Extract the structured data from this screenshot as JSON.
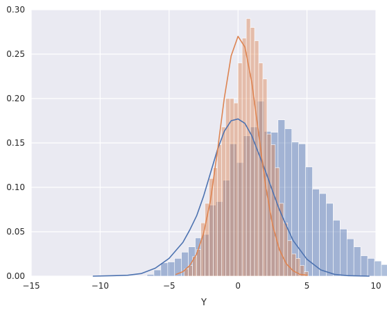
{
  "chart_data": {
    "type": "histogram",
    "title": "",
    "xlabel": "Y",
    "ylabel": "",
    "xlim": [
      -15,
      10
    ],
    "ylim": [
      0,
      0.3
    ],
    "x_ticks": [
      -15,
      -10,
      -5,
      0,
      5,
      10
    ],
    "y_ticks": [
      0.0,
      0.05,
      0.1,
      0.15,
      0.2,
      0.25,
      0.3
    ],
    "x_tick_labels": [
      "−15",
      "−10",
      "−5",
      "0",
      "5",
      "10"
    ],
    "y_tick_labels": [
      "0.00",
      "0.05",
      "0.10",
      "0.15",
      "0.20",
      "0.25",
      "0.30"
    ],
    "grid": true,
    "series": [
      {
        "color": "#4c72b0",
        "bin_start": -6.6,
        "bin_width": 0.5,
        "density": [
          0.002,
          0.007,
          0.015,
          0.016,
          0.02,
          0.027,
          0.033,
          0.043,
          0.047,
          0.08,
          0.084,
          0.108,
          0.149,
          0.128,
          0.158,
          0.168,
          0.197,
          0.163,
          0.162,
          0.176,
          0.166,
          0.151,
          0.149,
          0.123,
          0.098,
          0.093,
          0.082,
          0.063,
          0.053,
          0.042,
          0.033,
          0.023,
          0.02,
          0.017,
          0.013,
          0.008
        ],
        "kde": {
          "x": [
            -10.5,
            -9,
            -8,
            -7,
            -6,
            -5,
            -4,
            -3.5,
            -3,
            -2.5,
            -2,
            -1.5,
            -1,
            -0.5,
            0,
            0.5,
            1,
            1.5,
            2,
            2.5,
            3,
            3.5,
            4,
            5,
            6,
            7,
            8,
            9.5
          ],
          "y": [
            0.0,
            0.0005,
            0.001,
            0.003,
            0.009,
            0.02,
            0.038,
            0.052,
            0.068,
            0.09,
            0.116,
            0.142,
            0.163,
            0.175,
            0.177,
            0.172,
            0.158,
            0.138,
            0.118,
            0.096,
            0.075,
            0.057,
            0.04,
            0.019,
            0.007,
            0.002,
            0.0005,
            0.0
          ]
        }
      },
      {
        "color": "#dd8452",
        "bin_start": -3.9,
        "bin_width": 0.3,
        "density": [
          0.008,
          0.012,
          0.022,
          0.03,
          0.06,
          0.082,
          0.11,
          0.122,
          0.148,
          0.168,
          0.2,
          0.2,
          0.195,
          0.24,
          0.268,
          0.29,
          0.28,
          0.265,
          0.24,
          0.222,
          0.16,
          0.148,
          0.122,
          0.082,
          0.06,
          0.04,
          0.025,
          0.02,
          0.012,
          0.005
        ],
        "kde": {
          "x": [
            -4.5,
            -4,
            -3.5,
            -3,
            -2.5,
            -2,
            -1.5,
            -1,
            -0.5,
            0,
            0.5,
            1,
            1.5,
            2,
            2.5,
            3,
            3.5,
            4,
            4.5,
            5
          ],
          "y": [
            0.002,
            0.005,
            0.012,
            0.025,
            0.048,
            0.085,
            0.14,
            0.2,
            0.248,
            0.27,
            0.258,
            0.218,
            0.16,
            0.102,
            0.058,
            0.03,
            0.014,
            0.006,
            0.002,
            0.001
          ]
        }
      }
    ]
  }
}
